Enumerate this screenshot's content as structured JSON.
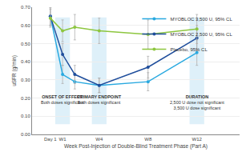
{
  "chart_data": {
    "type": "line",
    "x": [
      0,
      1,
      2,
      4,
      8,
      12
    ],
    "xlabel": "Week Post-Injection of Double-Blind Treatment Phase (Part A)",
    "ylabel": "uSFR (g/min)",
    "xlim": [
      -1.5,
      15.5
    ],
    "xticks": [
      {
        "value": 0,
        "label": "Day 1"
      },
      {
        "value": 1,
        "label": "W1"
      },
      {
        "value": 4,
        "label": "W4"
      },
      {
        "value": 8,
        "label": "W8"
      },
      {
        "value": 12,
        "label": "W12"
      }
    ],
    "ylim": [
      0,
      0.7
    ],
    "yticks": [
      {
        "value": 0,
        "label": "0.00"
      },
      {
        "value": 0.1,
        "label": "0.10"
      },
      {
        "value": 0.2,
        "label": "0.20"
      },
      {
        "value": 0.3,
        "label": "0.30"
      },
      {
        "value": 0.4,
        "label": "0.40"
      },
      {
        "value": 0.5,
        "label": "0.50"
      },
      {
        "value": 0.6,
        "label": "0.60"
      },
      {
        "value": 0.7,
        "label": "0.70"
      }
    ],
    "grid": true,
    "legend": "top right",
    "marker": "circle",
    "series": [
      {
        "name": "MYOBLOC 3,500 U, 95% CL",
        "color": "#29a9e0",
        "values": [
          0.65,
          0.33,
          0.29,
          0.27,
          0.29,
          0.45
        ],
        "error": [
          0.05,
          0.05,
          0.04,
          0.04,
          0.05,
          0.07
        ]
      },
      {
        "name": "MYOBLOC 2,500 U, 95% CL",
        "color": "#1f4e9c",
        "values": [
          0.65,
          0.44,
          0.33,
          0.27,
          0.37,
          0.53
        ],
        "error": [
          0.05,
          0.06,
          0.05,
          0.04,
          0.06,
          0.07
        ]
      },
      {
        "name": "Placebo, 95% CL",
        "color": "#8dc63f",
        "values": [
          0.64,
          0.57,
          0.59,
          0.57,
          0.55,
          0.58
        ],
        "error": [
          0.05,
          0.06,
          0.07,
          0.07,
          0.08,
          0.08
        ]
      }
    ],
    "annotations": [
      {
        "x": 1,
        "title": "ONSET OF EFFECT",
        "lines": [
          "Both doses significant"
        ]
      },
      {
        "x": 4,
        "title": "PRIMARY ENDPOINT",
        "lines": [
          "Both doses significant"
        ]
      },
      {
        "x": 12,
        "title": "DURATION",
        "lines": [
          "2,500 U dose not significant",
          "3,500 U dose significant"
        ]
      }
    ]
  }
}
